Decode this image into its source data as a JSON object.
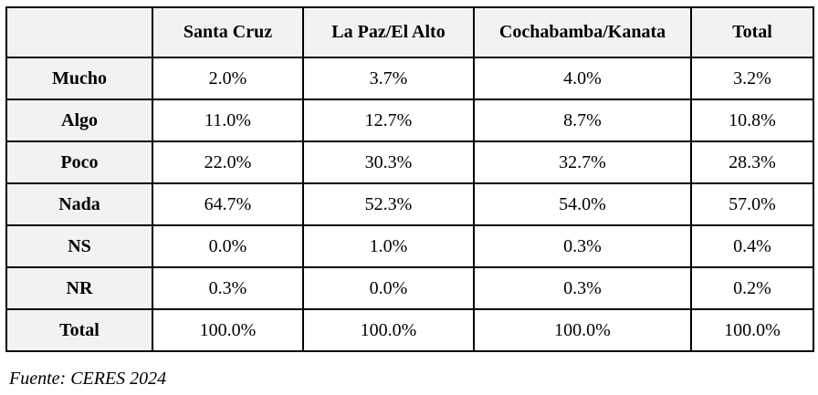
{
  "table": {
    "columns": [
      "Santa Cruz",
      "La Paz/El Alto",
      "Cochabamba/Kanata",
      "Total"
    ],
    "rows": [
      {
        "label": "Mucho",
        "values": [
          "2.0%",
          "3.7%",
          "4.0%",
          "3.2%"
        ]
      },
      {
        "label": "Algo",
        "values": [
          "11.0%",
          "12.7%",
          "8.7%",
          "10.8%"
        ]
      },
      {
        "label": "Poco",
        "values": [
          "22.0%",
          "30.3%",
          "32.7%",
          "28.3%"
        ]
      },
      {
        "label": "Nada",
        "values": [
          "64.7%",
          "52.3%",
          "54.0%",
          "57.0%"
        ]
      },
      {
        "label": "NS",
        "values": [
          "0.0%",
          "1.0%",
          "0.3%",
          "0.4%"
        ]
      },
      {
        "label": "NR",
        "values": [
          "0.3%",
          "0.0%",
          "0.3%",
          "0.2%"
        ]
      },
      {
        "label": "Total",
        "values": [
          "100.0%",
          "100.0%",
          "100.0%",
          "100.0%"
        ]
      }
    ]
  },
  "source": "Fuente: CERES 2024"
}
